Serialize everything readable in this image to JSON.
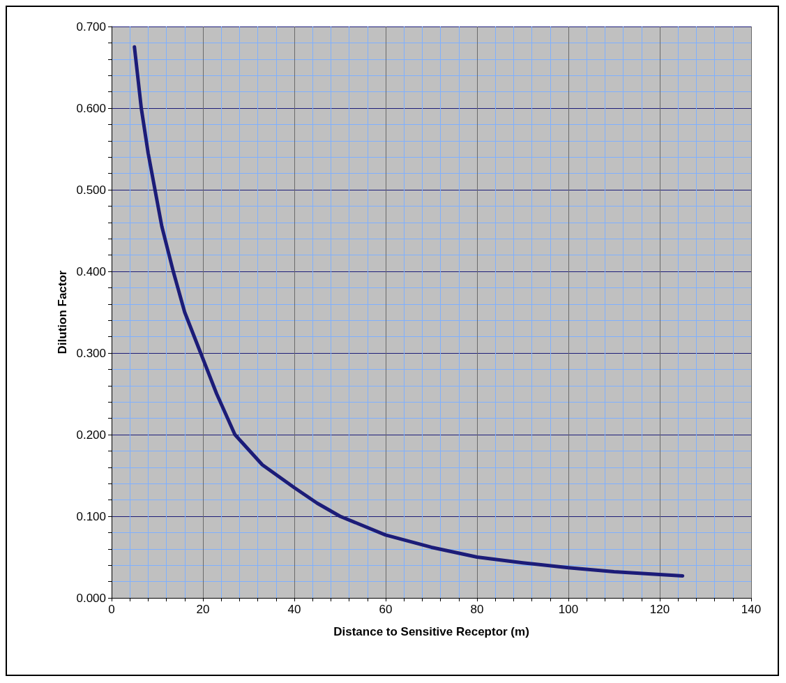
{
  "chart_data": {
    "type": "line",
    "xlabel": "Distance to Sensitive Receptor (m)",
    "ylabel": "Dilution Factor",
    "x": [
      5,
      6.5,
      8,
      9.5,
      11,
      13.5,
      16,
      19.5,
      23,
      27,
      33,
      40,
      45,
      50,
      60,
      70,
      80,
      90,
      100,
      110,
      125
    ],
    "series": [
      {
        "color": "#1c1c78",
        "values": [
          0.675,
          0.6,
          0.545,
          0.5,
          0.455,
          0.4,
          0.35,
          0.3,
          0.25,
          0.2,
          0.163,
          0.135,
          0.116,
          0.1,
          0.077,
          0.062,
          0.05,
          0.043,
          0.037,
          0.032,
          0.027
        ]
      }
    ],
    "xlim": [
      0,
      140
    ],
    "xticks": [
      0,
      {
        "value": 4,
        "label": null
      },
      {
        "value": 8,
        "label": null
      },
      {
        "value": 12,
        "label": null
      },
      {
        "value": 16,
        "label": null
      },
      20,
      {
        "value": 24,
        "label": null
      },
      {
        "value": 28,
        "label": null
      },
      {
        "value": 32,
        "label": null
      },
      {
        "value": 36,
        "label": null
      },
      40,
      {
        "value": 44,
        "label": null
      },
      {
        "value": 48,
        "label": null
      },
      {
        "value": 52,
        "label": null
      },
      {
        "value": 56,
        "label": null
      },
      60,
      {
        "value": 64,
        "label": null
      },
      {
        "value": 68,
        "label": null
      },
      {
        "value": 72,
        "label": null
      },
      {
        "value": 76,
        "label": null
      },
      80,
      {
        "value": 84,
        "label": null
      },
      {
        "value": 88,
        "label": null
      },
      {
        "value": 92,
        "label": null
      },
      {
        "value": 96,
        "label": null
      },
      100,
      {
        "value": 104,
        "label": null
      },
      {
        "value": 108,
        "label": null
      },
      {
        "value": 112,
        "label": null
      },
      {
        "value": 116,
        "label": null
      },
      120,
      {
        "value": 124,
        "label": null
      },
      {
        "value": 128,
        "label": null
      },
      {
        "value": 132,
        "label": null
      },
      {
        "value": 136,
        "label": null
      },
      140
    ],
    "ylim": [
      0,
      0.7
    ],
    "yticks": [
      {
        "value": 0,
        "label": "0.000"
      },
      {
        "value": 0.02,
        "label": null
      },
      {
        "value": 0.04,
        "label": null
      },
      {
        "value": 0.06,
        "label": null
      },
      {
        "value": 0.08,
        "label": null
      },
      {
        "value": 0.1,
        "label": "0.100"
      },
      {
        "value": 0.12,
        "label": null
      },
      {
        "value": 0.14,
        "label": null
      },
      {
        "value": 0.16,
        "label": null
      },
      {
        "value": 0.18,
        "label": null
      },
      {
        "value": 0.2,
        "label": "0.200"
      },
      {
        "value": 0.22,
        "label": null
      },
      {
        "value": 0.24,
        "label": null
      },
      {
        "value": 0.26,
        "label": null
      },
      {
        "value": 0.28,
        "label": null
      },
      {
        "value": 0.3,
        "label": "0.300"
      },
      {
        "value": 0.32,
        "label": null
      },
      {
        "value": 0.34,
        "label": null
      },
      {
        "value": 0.36,
        "label": null
      },
      {
        "value": 0.38,
        "label": null
      },
      {
        "value": 0.4,
        "label": "0.400"
      },
      {
        "value": 0.42,
        "label": null
      },
      {
        "value": 0.44,
        "label": null
      },
      {
        "value": 0.46,
        "label": null
      },
      {
        "value": 0.48,
        "label": null
      },
      {
        "value": 0.5,
        "label": "0.500"
      },
      {
        "value": 0.52,
        "label": null
      },
      {
        "value": 0.54,
        "label": null
      },
      {
        "value": 0.56,
        "label": null
      },
      {
        "value": 0.58,
        "label": null
      },
      {
        "value": 0.6,
        "label": "0.600"
      },
      {
        "value": 0.62,
        "label": null
      },
      {
        "value": 0.64,
        "label": null
      },
      {
        "value": 0.66,
        "label": null
      },
      {
        "value": 0.68,
        "label": null
      },
      {
        "value": 0.7,
        "label": "0.700"
      }
    ],
    "grid": true,
    "marker": "none",
    "line_style": "solid"
  }
}
